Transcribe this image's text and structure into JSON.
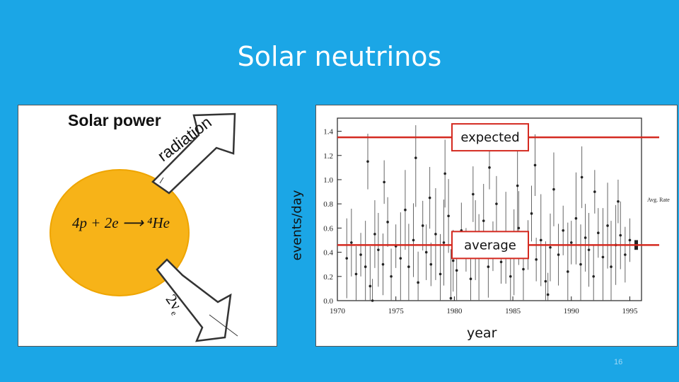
{
  "slide": {
    "title": "Solar neutrinos",
    "page_number": "16"
  },
  "sun_panel": {
    "heading": "Solar power",
    "reaction": "4p + 2e ⟶ ⁴He",
    "radiation_label": "radiation",
    "neutrino_label": "2ν",
    "neutrino_subscript": "e"
  },
  "colors": {
    "background": "#1ba6e6",
    "sun": "#f7b318",
    "reference_lines": "#d42a20"
  },
  "chart_data": {
    "type": "scatter",
    "xlabel": "year",
    "ylabel": "events/day",
    "xlim": [
      1970,
      1996
    ],
    "ylim": [
      0.0,
      1.45
    ],
    "x_ticks": [
      "1970",
      "1975",
      "1980",
      "1985",
      "1990",
      "1995"
    ],
    "y_ticks": [
      "0.0",
      "0.2",
      "0.4",
      "0.6",
      "0.8",
      "1.0",
      "1.2",
      "1.4"
    ],
    "error_bars": true,
    "side_label": "Avg. Rate",
    "reference_lines": [
      {
        "label": "expected",
        "y": 1.35
      },
      {
        "label": "average",
        "y": 0.46
      }
    ],
    "points": [
      [
        1970.8,
        0.35
      ],
      [
        1971.2,
        0.48
      ],
      [
        1971.6,
        0.22
      ],
      [
        1972.0,
        0.38
      ],
      [
        1972.4,
        0.28
      ],
      [
        1972.8,
        0.12
      ],
      [
        1973.2,
        0.55
      ],
      [
        1973.5,
        0.42
      ],
      [
        1973.9,
        0.3
      ],
      [
        1974.3,
        0.65
      ],
      [
        1974.6,
        0.2
      ],
      [
        1975.0,
        0.45
      ],
      [
        1975.4,
        0.35
      ],
      [
        1975.8,
        0.75
      ],
      [
        1976.1,
        0.28
      ],
      [
        1976.5,
        0.5
      ],
      [
        1976.9,
        0.15
      ],
      [
        1977.3,
        0.62
      ],
      [
        1977.6,
        0.4
      ],
      [
        1978.0,
        0.3
      ],
      [
        1978.4,
        0.55
      ],
      [
        1978.8,
        0.22
      ],
      [
        1979.1,
        0.48
      ],
      [
        1979.5,
        0.7
      ],
      [
        1979.9,
        0.33
      ],
      [
        1980.2,
        0.25
      ],
      [
        1980.6,
        0.58
      ],
      [
        1981.0,
        0.42
      ],
      [
        1981.4,
        0.18
      ],
      [
        1981.8,
        0.5
      ],
      [
        1982.1,
        0.36
      ],
      [
        1982.5,
        0.66
      ],
      [
        1982.9,
        0.28
      ],
      [
        1983.3,
        0.45
      ],
      [
        1983.6,
        0.8
      ],
      [
        1984.0,
        0.32
      ],
      [
        1984.4,
        0.52
      ],
      [
        1984.8,
        0.2
      ],
      [
        1985.1,
        0.4
      ],
      [
        1985.5,
        0.6
      ],
      [
        1985.9,
        0.26
      ],
      [
        1986.3,
        0.46
      ],
      [
        1986.6,
        0.72
      ],
      [
        1987.0,
        0.34
      ],
      [
        1987.4,
        0.5
      ],
      [
        1987.8,
        0.16
      ],
      [
        1988.2,
        0.44
      ],
      [
        1988.5,
        0.92
      ],
      [
        1988.9,
        0.38
      ],
      [
        1989.3,
        0.58
      ],
      [
        1989.7,
        0.24
      ],
      [
        1990.0,
        0.48
      ],
      [
        1990.4,
        0.68
      ],
      [
        1990.8,
        0.3
      ],
      [
        1991.2,
        0.52
      ],
      [
        1991.5,
        0.42
      ],
      [
        1991.9,
        0.2
      ],
      [
        1992.3,
        0.56
      ],
      [
        1992.7,
        0.36
      ],
      [
        1993.1,
        0.62
      ],
      [
        1993.4,
        0.28
      ],
      [
        1993.8,
        0.46
      ],
      [
        1994.2,
        0.54
      ],
      [
        1994.6,
        0.38
      ],
      [
        1995.0,
        0.5
      ],
      [
        1972.6,
        1.15
      ],
      [
        1976.7,
        1.18
      ],
      [
        1979.2,
        1.05
      ],
      [
        1983.0,
        1.1
      ],
      [
        1986.9,
        1.12
      ],
      [
        1990.9,
        1.02
      ],
      [
        1974.0,
        0.98
      ],
      [
        1985.4,
        0.95
      ],
      [
        1988.0,
        0.05
      ],
      [
        1979.7,
        0.02
      ],
      [
        1977.9,
        0.85
      ],
      [
        1981.6,
        0.88
      ],
      [
        1992.0,
        0.9
      ],
      [
        1994.0,
        0.82
      ],
      [
        1973.0,
        0.0
      ]
    ]
  }
}
